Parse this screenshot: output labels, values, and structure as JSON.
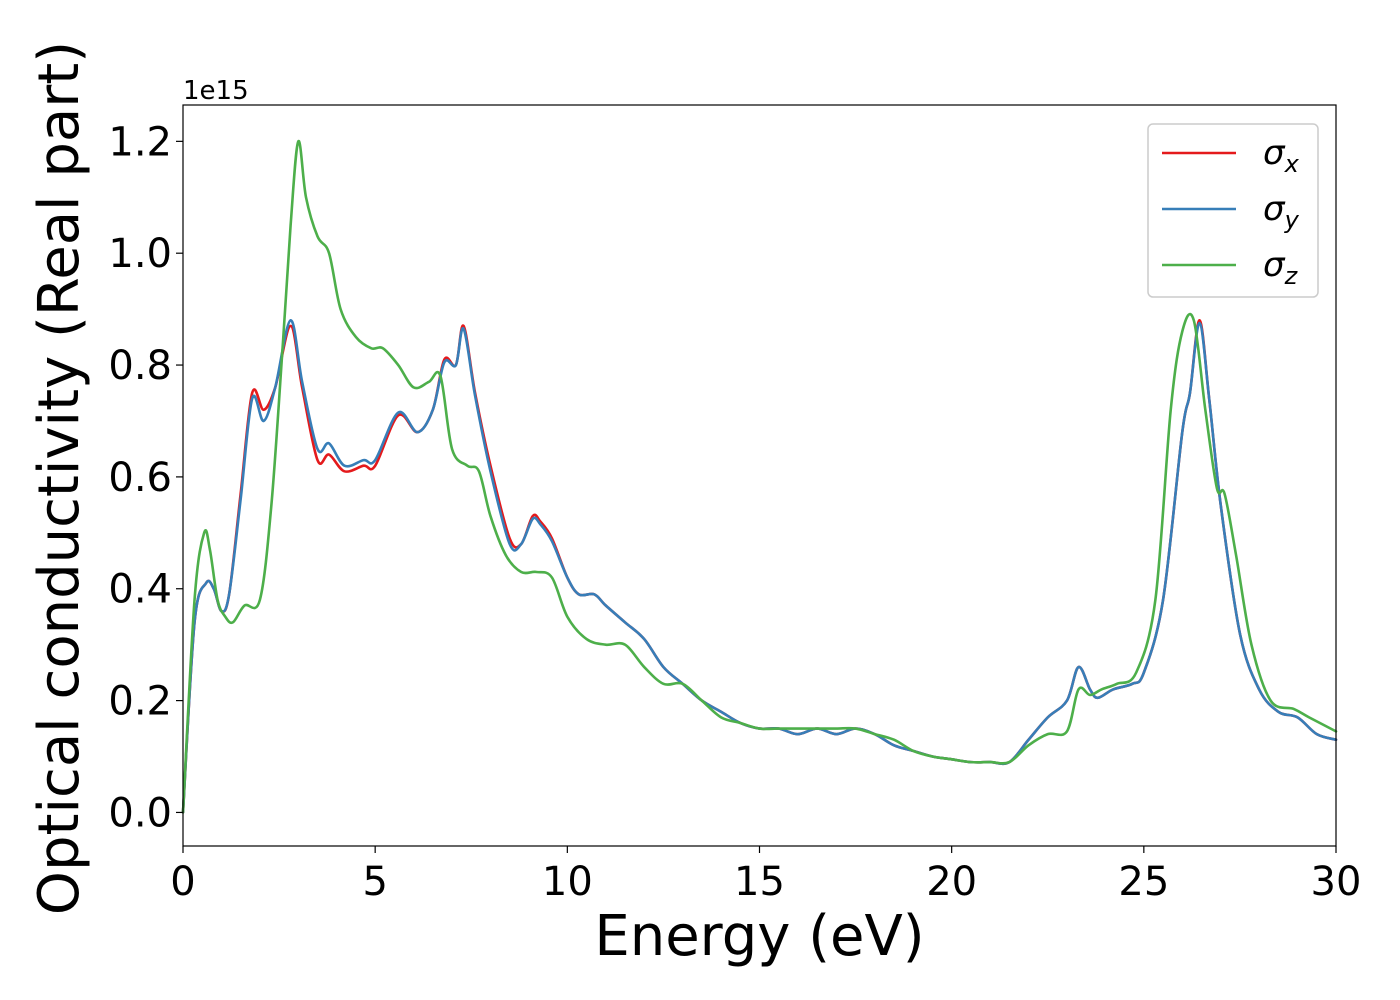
{
  "chart_data": {
    "type": "line",
    "xlabel": "Energy (eV)",
    "ylabel": "Optical conductivity (Real part)",
    "y_offset_label": "1e15",
    "xlim": [
      0,
      30
    ],
    "ylim": [
      -0.06,
      1.265
    ],
    "xticks": [
      0,
      5,
      10,
      15,
      20,
      25,
      30
    ],
    "xtick_labels": [
      "0",
      "5",
      "10",
      "15",
      "20",
      "25",
      "30"
    ],
    "yticks": [
      0.0,
      0.2,
      0.4,
      0.6,
      0.8,
      1.0,
      1.2
    ],
    "ytick_labels": [
      "0.0",
      "0.2",
      "0.4",
      "0.6",
      "0.8",
      "1.0",
      "1.2"
    ],
    "grid": false,
    "legend_position": "top-right",
    "series": [
      {
        "name": "σx",
        "legend_base": "σ",
        "legend_sub": "x",
        "color": "#e41a1c",
        "x": [
          0,
          0.3,
          0.6,
          0.8,
          1.0,
          1.2,
          1.5,
          1.8,
          2.1,
          2.4,
          2.8,
          3.1,
          3.5,
          3.8,
          4.2,
          4.7,
          5.0,
          5.6,
          6.1,
          6.5,
          6.8,
          7.1,
          7.3,
          7.6,
          8.0,
          8.5,
          8.8,
          9.1,
          9.3,
          9.6,
          10.0,
          10.3,
          10.7,
          11.0,
          11.5,
          12.0,
          12.5,
          13.0,
          13.5,
          14.0,
          14.5,
          15.0,
          15.5,
          16.0,
          16.5,
          17.0,
          17.5,
          18.0,
          18.5,
          19.0,
          19.5,
          20.0,
          20.5,
          21.0,
          21.5,
          22.0,
          22.5,
          23.0,
          23.3,
          23.6,
          23.8,
          24.2,
          24.7,
          25.0,
          25.5,
          26.0,
          26.2,
          26.45,
          26.7,
          27.0,
          27.5,
          28.0,
          28.5,
          29.0,
          29.5,
          30.0
        ],
        "y": [
          0.0,
          0.34,
          0.41,
          0.4,
          0.36,
          0.39,
          0.57,
          0.75,
          0.72,
          0.76,
          0.87,
          0.76,
          0.63,
          0.64,
          0.61,
          0.62,
          0.62,
          0.71,
          0.68,
          0.72,
          0.81,
          0.8,
          0.87,
          0.75,
          0.62,
          0.49,
          0.48,
          0.53,
          0.52,
          0.49,
          0.42,
          0.39,
          0.39,
          0.37,
          0.34,
          0.31,
          0.26,
          0.23,
          0.2,
          0.18,
          0.16,
          0.15,
          0.15,
          0.14,
          0.15,
          0.14,
          0.15,
          0.14,
          0.12,
          0.11,
          0.1,
          0.095,
          0.09,
          0.09,
          0.09,
          0.13,
          0.17,
          0.2,
          0.26,
          0.22,
          0.205,
          0.22,
          0.23,
          0.25,
          0.38,
          0.68,
          0.75,
          0.88,
          0.74,
          0.55,
          0.32,
          0.22,
          0.18,
          0.17,
          0.14,
          0.13
        ]
      },
      {
        "name": "σy",
        "legend_base": "σ",
        "legend_sub": "y",
        "color": "#377eb8",
        "x": [
          0,
          0.3,
          0.6,
          0.8,
          1.0,
          1.2,
          1.5,
          1.8,
          2.1,
          2.4,
          2.8,
          3.1,
          3.5,
          3.8,
          4.2,
          4.7,
          5.0,
          5.6,
          6.1,
          6.5,
          6.8,
          7.1,
          7.3,
          7.6,
          8.0,
          8.5,
          8.8,
          9.1,
          9.3,
          9.6,
          10.0,
          10.3,
          10.7,
          11.0,
          11.5,
          12.0,
          12.5,
          13.0,
          13.5,
          14.0,
          14.5,
          15.0,
          15.5,
          16.0,
          16.5,
          17.0,
          17.5,
          18.0,
          18.5,
          19.0,
          19.5,
          20.0,
          20.5,
          21.0,
          21.5,
          22.0,
          22.5,
          23.0,
          23.3,
          23.6,
          23.8,
          24.2,
          24.7,
          25.0,
          25.5,
          26.0,
          26.2,
          26.45,
          26.7,
          27.0,
          27.5,
          28.0,
          28.5,
          29.0,
          29.5,
          30.0
        ],
        "y": [
          0.0,
          0.34,
          0.41,
          0.4,
          0.36,
          0.39,
          0.56,
          0.74,
          0.7,
          0.76,
          0.88,
          0.77,
          0.65,
          0.66,
          0.62,
          0.63,
          0.63,
          0.715,
          0.68,
          0.72,
          0.805,
          0.8,
          0.865,
          0.745,
          0.61,
          0.48,
          0.48,
          0.525,
          0.515,
          0.485,
          0.42,
          0.39,
          0.39,
          0.37,
          0.34,
          0.31,
          0.26,
          0.23,
          0.2,
          0.18,
          0.16,
          0.15,
          0.15,
          0.14,
          0.15,
          0.14,
          0.15,
          0.14,
          0.12,
          0.11,
          0.1,
          0.095,
          0.09,
          0.09,
          0.09,
          0.13,
          0.17,
          0.2,
          0.26,
          0.22,
          0.205,
          0.22,
          0.23,
          0.25,
          0.38,
          0.68,
          0.75,
          0.875,
          0.74,
          0.55,
          0.32,
          0.22,
          0.18,
          0.17,
          0.14,
          0.13
        ]
      },
      {
        "name": "σz",
        "legend_base": "σ",
        "legend_sub": "z",
        "color": "#4daf4a",
        "x": [
          0,
          0.3,
          0.55,
          0.7,
          0.9,
          1.1,
          1.3,
          1.6,
          2.0,
          2.3,
          2.6,
          2.8,
          3.0,
          3.2,
          3.5,
          3.8,
          4.1,
          4.5,
          4.9,
          5.2,
          5.6,
          6.0,
          6.4,
          6.7,
          7.0,
          7.4,
          7.7,
          8.0,
          8.4,
          8.8,
          9.2,
          9.6,
          10.0,
          10.5,
          11.0,
          11.5,
          12.0,
          12.5,
          13.0,
          13.5,
          14.0,
          14.5,
          15.0,
          15.5,
          16.0,
          16.5,
          17.0,
          17.5,
          18.0,
          18.5,
          19.0,
          19.5,
          20.0,
          20.5,
          21.0,
          21.5,
          22.0,
          22.5,
          23.0,
          23.3,
          23.6,
          23.9,
          24.3,
          24.8,
          25.3,
          25.7,
          26.0,
          26.3,
          26.6,
          26.9,
          27.1,
          27.4,
          27.8,
          28.3,
          28.9,
          29.3,
          30.0
        ],
        "y": [
          0.0,
          0.38,
          0.5,
          0.47,
          0.38,
          0.35,
          0.34,
          0.37,
          0.38,
          0.55,
          0.84,
          1.05,
          1.2,
          1.1,
          1.03,
          1.0,
          0.9,
          0.85,
          0.83,
          0.83,
          0.8,
          0.76,
          0.77,
          0.78,
          0.65,
          0.62,
          0.61,
          0.53,
          0.46,
          0.43,
          0.43,
          0.42,
          0.35,
          0.31,
          0.3,
          0.3,
          0.26,
          0.23,
          0.23,
          0.2,
          0.17,
          0.16,
          0.15,
          0.15,
          0.15,
          0.15,
          0.15,
          0.15,
          0.14,
          0.13,
          0.11,
          0.1,
          0.095,
          0.09,
          0.09,
          0.09,
          0.12,
          0.14,
          0.145,
          0.22,
          0.21,
          0.22,
          0.23,
          0.25,
          0.38,
          0.72,
          0.86,
          0.88,
          0.72,
          0.58,
          0.57,
          0.46,
          0.3,
          0.2,
          0.185,
          0.17,
          0.145
        ]
      }
    ]
  }
}
